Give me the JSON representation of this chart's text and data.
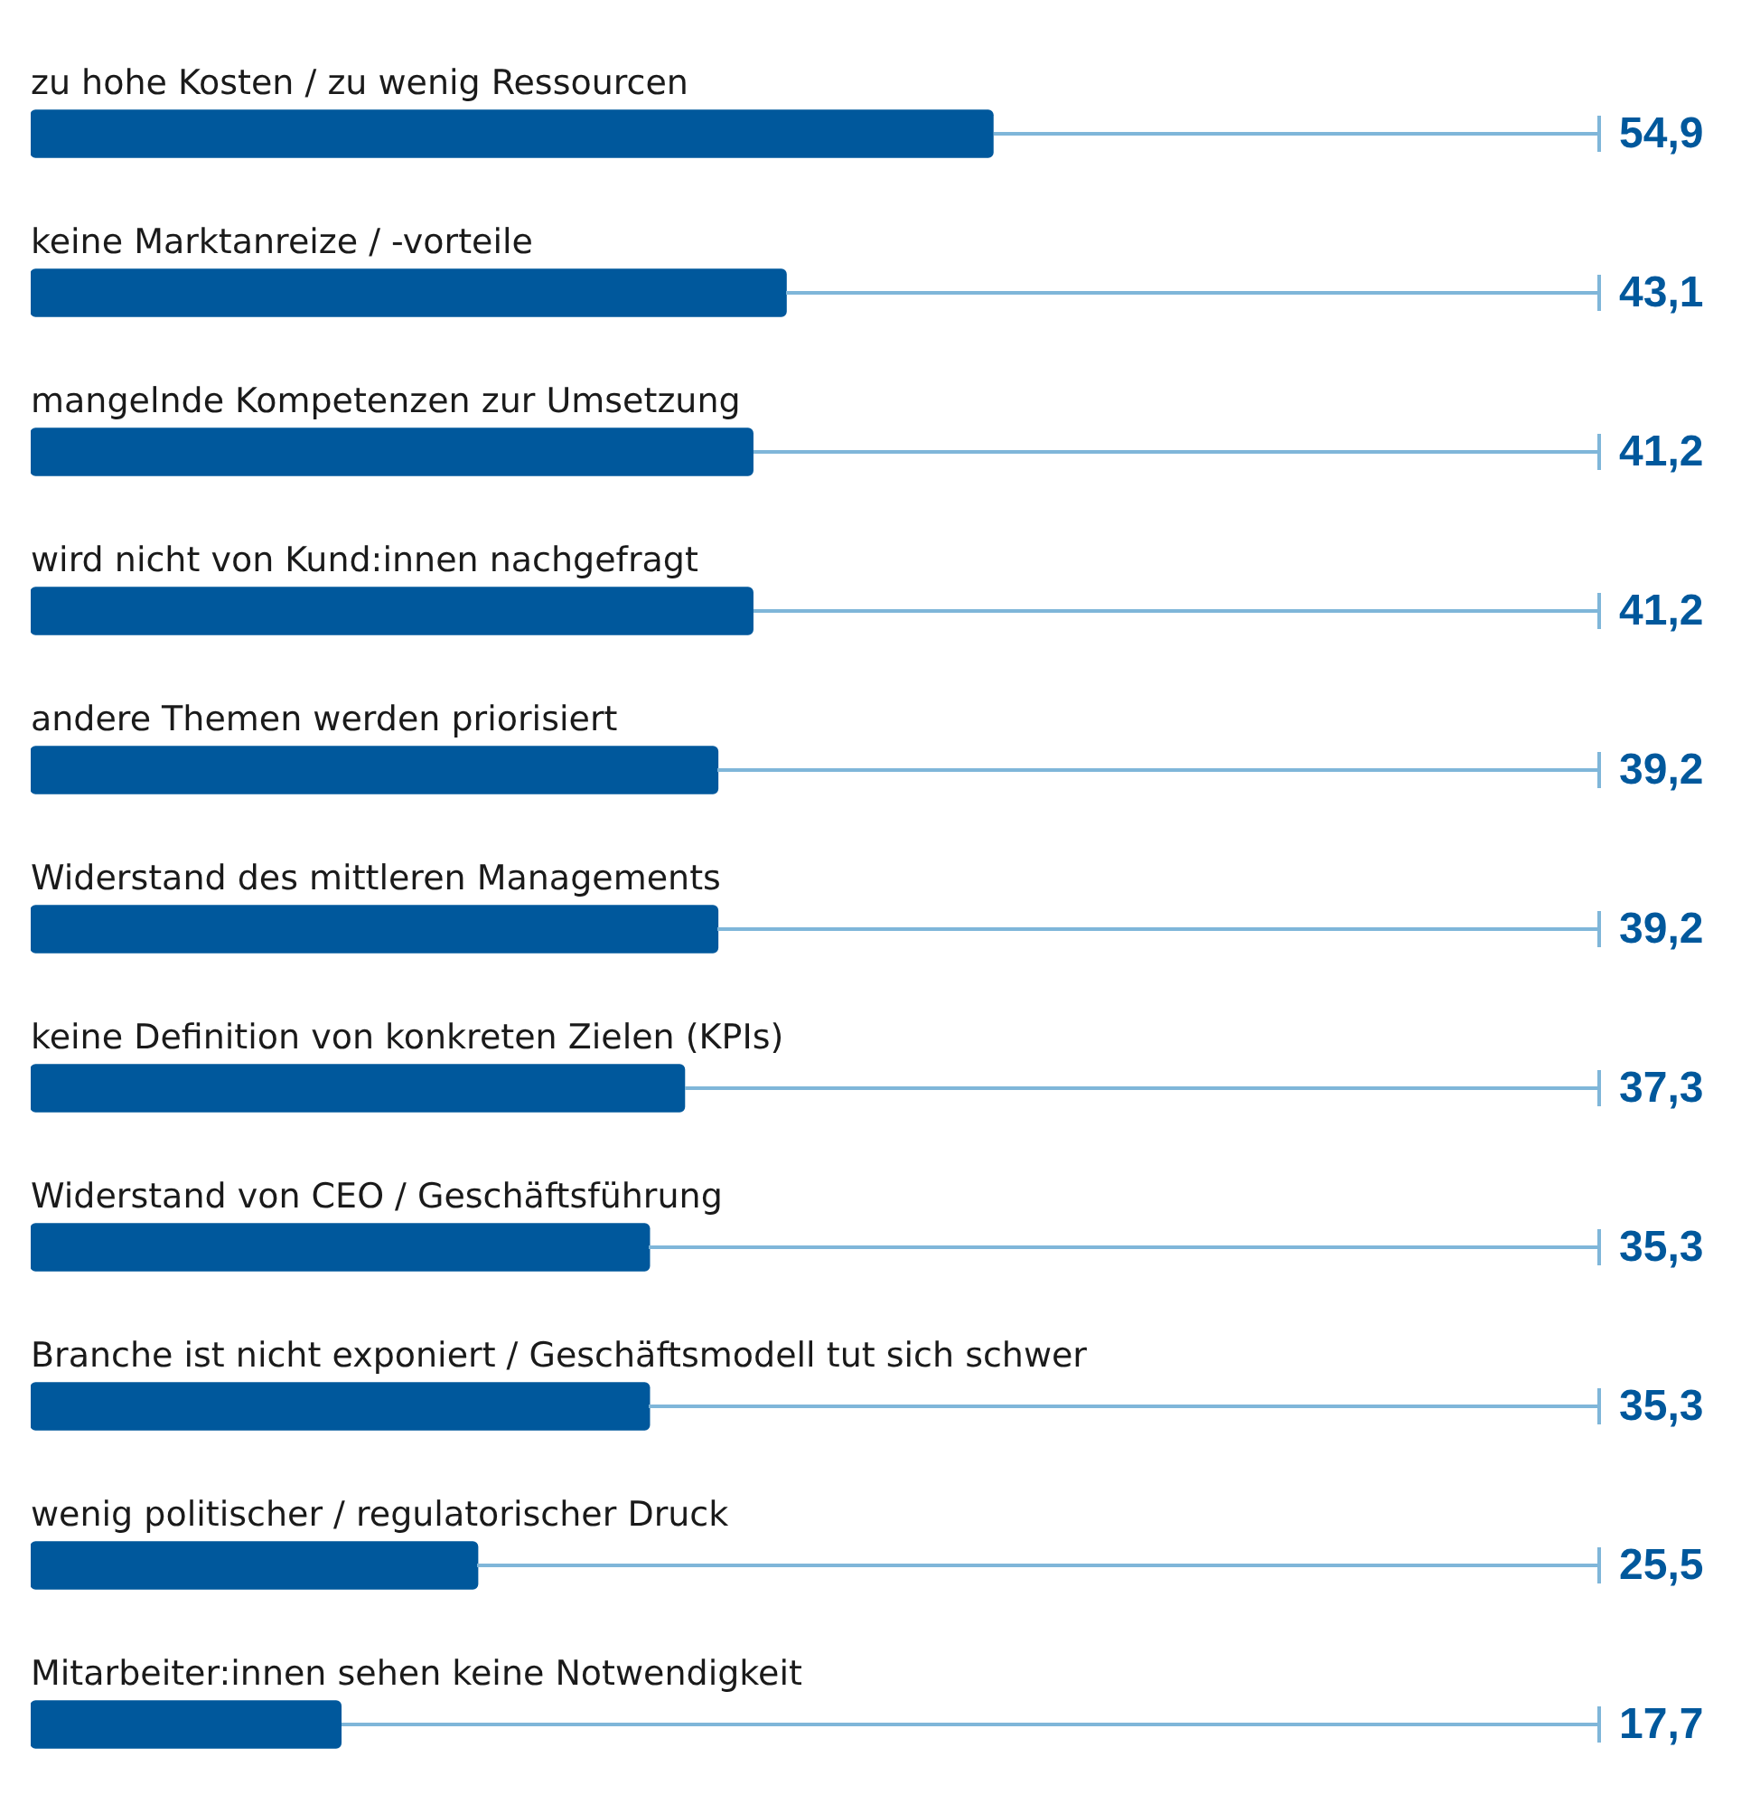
{
  "chart_data": {
    "type": "bar",
    "orientation": "horizontal",
    "categories": [
      "zu hohe Kosten / zu wenig Ressourcen",
      "keine Marktanreize / -vorteile",
      "mangelnde Kompetenzen zur Umsetzung",
      "wird nicht von Kund:innen nachgefragt",
      "andere Themen werden priorisiert",
      "Widerstand des mittleren Managements",
      "keine Definition von konkreten Zielen (KPIs)",
      "Widerstand von CEO / Geschäftsführung",
      "Branche ist nicht exponiert / Geschäftsmodell tut sich schwer",
      "wenig politischer / regulatorischer Druck",
      "Mitarbeiter:innen sehen keine Notwendigkeit"
    ],
    "values": [
      54.9,
      43.1,
      41.2,
      41.2,
      39.2,
      39.2,
      37.3,
      35.3,
      35.3,
      25.5,
      17.7
    ],
    "value_labels": [
      "54,9",
      "43,1",
      "41,2",
      "41,2",
      "39,2",
      "39,2",
      "37,3",
      "35,3",
      "35,3",
      "25,5",
      "17,7"
    ],
    "color": "#00589c",
    "tick_labels": false,
    "legend": false
  }
}
